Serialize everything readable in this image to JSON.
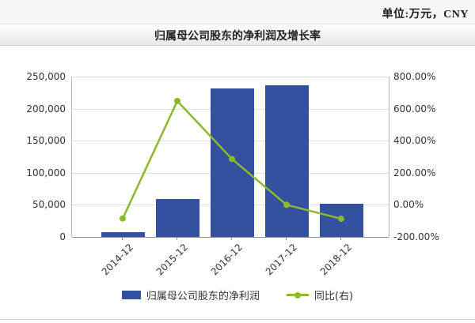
{
  "header": {
    "unit_label": "单位:万元，CNY"
  },
  "title_bar": {
    "title": "归属母公司股东的净利润及增长率"
  },
  "legend": [
    {
      "type": "bar",
      "label": "归属母公司股东的净利润",
      "color": "#33519E"
    },
    {
      "type": "line",
      "label": "同比(右)",
      "color": "#8CB82B"
    }
  ],
  "colors": {
    "bar": "#33519E",
    "line": "#8CB82B",
    "grid": "#e0e0e0",
    "axis": "#8f8f8f",
    "text": "#333333"
  },
  "chart_data": {
    "type": "bar",
    "subtype": "bar-line-combo",
    "title": "归属母公司股东的净利润及增长率",
    "unit": "万元, CNY",
    "categories": [
      "2014-12",
      "2015-12",
      "2016-12",
      "2017-12",
      "2018-12"
    ],
    "series": [
      {
        "name": "归属母公司股东的净利润",
        "type": "bar",
        "axis": "left",
        "color": "#33519E",
        "values": [
          8000,
          59000,
          232000,
          237000,
          52000
        ]
      },
      {
        "name": "同比(右)",
        "type": "line",
        "axis": "right",
        "color": "#8CB82B",
        "values": [
          -85,
          648,
          286,
          0,
          -87
        ]
      }
    ],
    "left_axis": {
      "min": 0,
      "max": 250000,
      "tick_labels": [
        "0",
        "50,000",
        "100,000",
        "150,000",
        "200,000",
        "250,000"
      ]
    },
    "right_axis": {
      "min": -200,
      "max": 800,
      "unit": "%",
      "tick_labels": [
        "-200.00%",
        "0.00%",
        "200.00%",
        "400.00%",
        "600.00%",
        "800.00%"
      ]
    },
    "grid": true,
    "legend_position": "bottom",
    "x_label_rotation": -45
  }
}
